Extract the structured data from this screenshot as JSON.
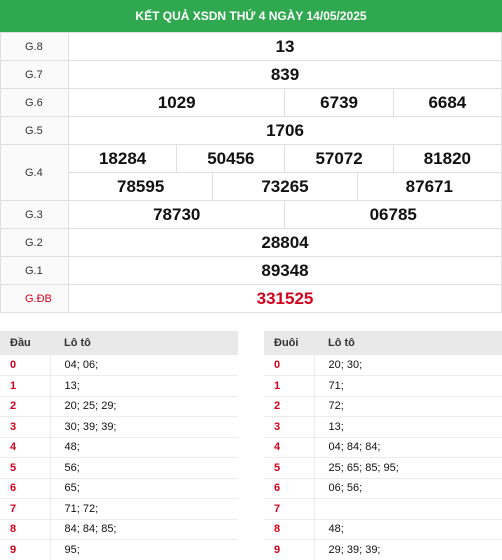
{
  "header": {
    "title": "KẾT QUẢ XSDN THỨ 4 NGÀY 14/05/2025"
  },
  "prizes": [
    {
      "label": "G.8",
      "numbers": [
        "13"
      ]
    },
    {
      "label": "G.7",
      "numbers": [
        "839"
      ]
    },
    {
      "label": "G.6",
      "numbers": [
        "1029",
        "6739",
        "6684"
      ]
    },
    {
      "label": "G.5",
      "numbers": [
        "1706"
      ]
    },
    {
      "label": "G.4",
      "numbers": [
        "18284",
        "50456",
        "57072",
        "81820",
        "78595",
        "73265",
        "87671"
      ]
    },
    {
      "label": "G.3",
      "numbers": [
        "78730",
        "06785"
      ]
    },
    {
      "label": "G.2",
      "numbers": [
        "28804"
      ]
    },
    {
      "label": "G.1",
      "numbers": [
        "89348"
      ]
    },
    {
      "label": "G.ĐB",
      "numbers": [
        "331525"
      ]
    }
  ],
  "loto_head": {
    "col1": "Đầu",
    "col2": "Lô tô",
    "rows": [
      {
        "k": "0",
        "v": "04; 06;"
      },
      {
        "k": "1",
        "v": "13;"
      },
      {
        "k": "2",
        "v": "20; 25; 29;"
      },
      {
        "k": "3",
        "v": "30; 39; 39;"
      },
      {
        "k": "4",
        "v": "48;"
      },
      {
        "k": "5",
        "v": "56;"
      },
      {
        "k": "6",
        "v": "65;"
      },
      {
        "k": "7",
        "v": "71; 72;"
      },
      {
        "k": "8",
        "v": "84; 84; 85;"
      },
      {
        "k": "9",
        "v": "95;"
      }
    ]
  },
  "loto_tail": {
    "col1": "Đuôi",
    "col2": "Lô tô",
    "rows": [
      {
        "k": "0",
        "v": "20; 30;"
      },
      {
        "k": "1",
        "v": "71;"
      },
      {
        "k": "2",
        "v": "72;"
      },
      {
        "k": "3",
        "v": "13;"
      },
      {
        "k": "4",
        "v": "04; 84; 84;"
      },
      {
        "k": "5",
        "v": "25; 65; 85; 95;"
      },
      {
        "k": "6",
        "v": "06; 56;"
      },
      {
        "k": "7",
        "v": ""
      },
      {
        "k": "8",
        "v": "48;"
      },
      {
        "k": "9",
        "v": "29; 39; 39;"
      }
    ]
  },
  "colors": {
    "header_bg": "#2fa84f",
    "special_red": "#d0021b"
  }
}
